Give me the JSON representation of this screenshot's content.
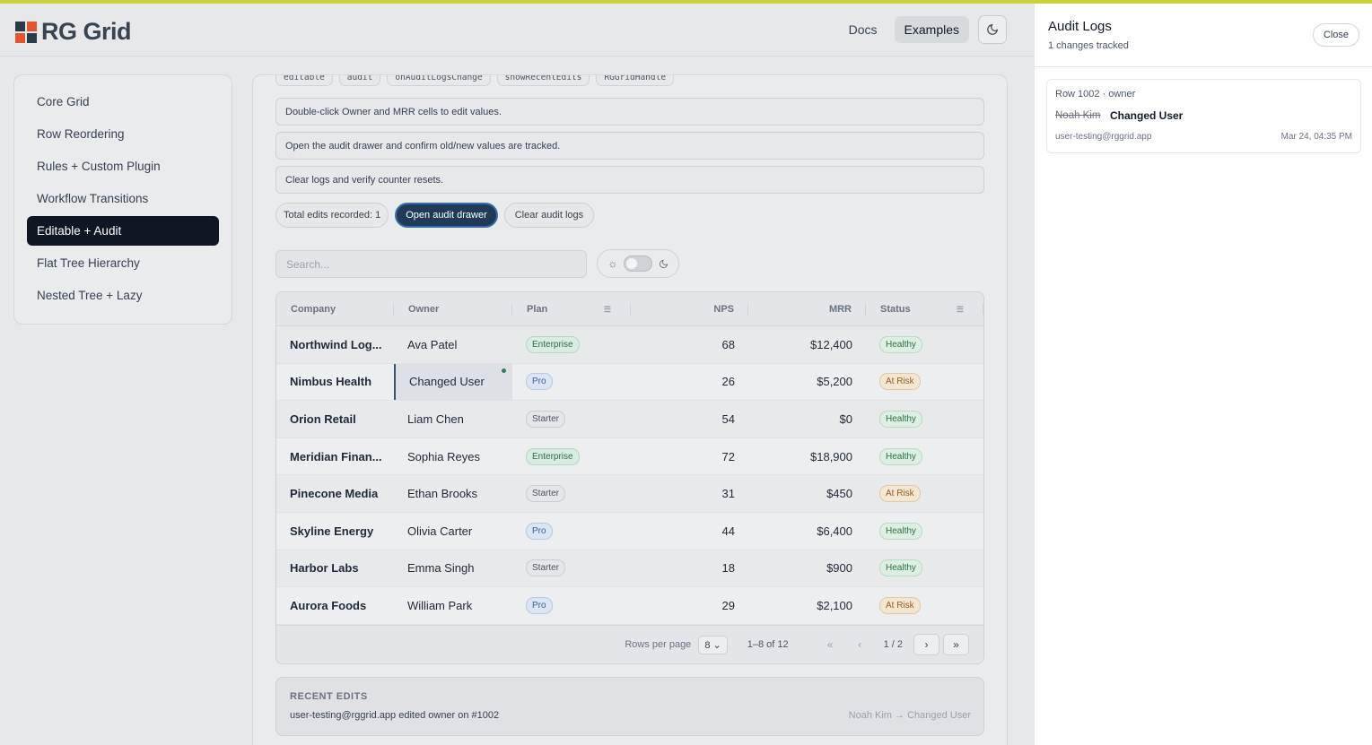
{
  "app": {
    "logo_text": "RG Grid"
  },
  "nav": {
    "docs": "Docs",
    "examples": "Examples",
    "theme_icon": "moon-icon"
  },
  "sidebar": {
    "items": [
      {
        "label": "Core Grid",
        "active": false
      },
      {
        "label": "Row Reordering",
        "active": false
      },
      {
        "label": "Rules + Custom Plugin",
        "active": false
      },
      {
        "label": "Workflow Transitions",
        "active": false
      },
      {
        "label": "Editable + Audit",
        "active": true
      },
      {
        "label": "Flat Tree Hierarchy",
        "active": false
      },
      {
        "label": "Nested Tree + Lazy",
        "active": false
      }
    ]
  },
  "main": {
    "chips": [
      "editable",
      "audit",
      "onAuditLogsChange",
      "showRecentEdits",
      "RGGridHandle"
    ],
    "steps": [
      "Double-click Owner and MRR cells to edit values.",
      "Open the audit drawer and confirm old/new values are tracked.",
      "Clear logs and verify counter resets."
    ],
    "edits_count": "Total edits recorded: 1",
    "open_drawer": "Open audit drawer",
    "clear_logs": "Clear audit logs",
    "search_placeholder": "Search..."
  },
  "table": {
    "columns": [
      "Company",
      "Owner",
      "Plan",
      "NPS",
      "MRR",
      "Status"
    ],
    "rows": [
      {
        "company": "Northwind Log...",
        "owner": "Ava Patel",
        "plan": "Enterprise",
        "nps": "68",
        "mrr": "$12,400",
        "status": "Healthy"
      },
      {
        "company": "Nimbus Health",
        "owner": "Changed User",
        "plan": "Pro",
        "nps": "26",
        "mrr": "$5,200",
        "status": "At Risk"
      },
      {
        "company": "Orion Retail",
        "owner": "Liam Chen",
        "plan": "Starter",
        "nps": "54",
        "mrr": "$0",
        "status": "Healthy"
      },
      {
        "company": "Meridian Finan...",
        "owner": "Sophia Reyes",
        "plan": "Enterprise",
        "nps": "72",
        "mrr": "$18,900",
        "status": "Healthy"
      },
      {
        "company": "Pinecone Media",
        "owner": "Ethan Brooks",
        "plan": "Starter",
        "nps": "31",
        "mrr": "$450",
        "status": "At Risk"
      },
      {
        "company": "Skyline Energy",
        "owner": "Olivia Carter",
        "plan": "Pro",
        "nps": "44",
        "mrr": "$6,400",
        "status": "Healthy"
      },
      {
        "company": "Harbor Labs",
        "owner": "Emma Singh",
        "plan": "Starter",
        "nps": "18",
        "mrr": "$900",
        "status": "Healthy"
      },
      {
        "company": "Aurora Foods",
        "owner": "William Park",
        "plan": "Pro",
        "nps": "29",
        "mrr": "$2,100",
        "status": "At Risk"
      }
    ],
    "footer": {
      "rows_per_page_label": "Rows per page",
      "rows_per_page_value": "8",
      "range": "1–8 of 12",
      "page": "1 / 2"
    }
  },
  "recent": {
    "title": "RECENT EDITS",
    "text": "user-testing@rggrid.app edited owner on #1002",
    "change": "Noah Kim → Changed User"
  },
  "drawer": {
    "title": "Audit Logs",
    "subtitle": "1 changes tracked",
    "close": "Close",
    "log": {
      "meta": "Row 1002 · owner",
      "old_value": "Noah Kim",
      "new_value": "Changed User",
      "user": "user-testing@rggrid.app",
      "time": "Mar 24, 04:35 PM"
    }
  },
  "colors": {
    "accent_bar": "#c9d43a",
    "primary_button": "#1f3b57",
    "active_nav": "#0f1724"
  }
}
